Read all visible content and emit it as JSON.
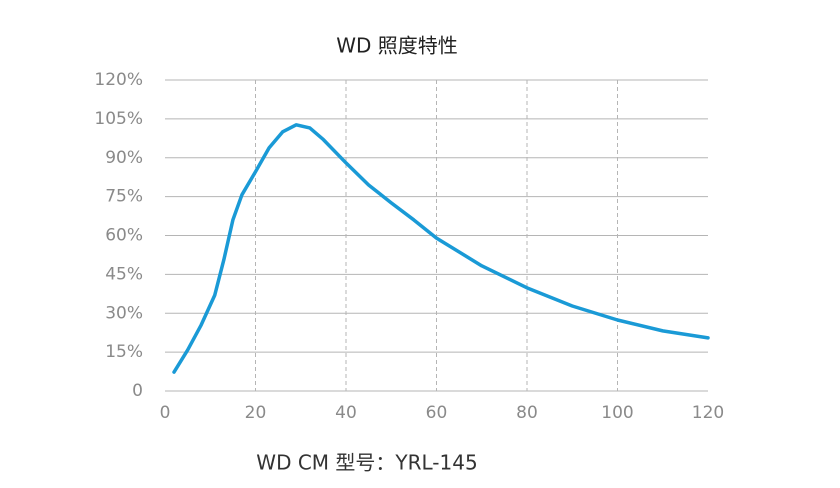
{
  "chart_data": {
    "type": "line",
    "title": "WD 照度特性",
    "caption": "WD CM 型号：YRL-145",
    "x": [
      2,
      5,
      8,
      11,
      13,
      15,
      17,
      20,
      23,
      26,
      29,
      32,
      35,
      40,
      45,
      50,
      55,
      60,
      70,
      80,
      90,
      100,
      110,
      120
    ],
    "series": [
      {
        "color": "#1a9ad6",
        "values": [
          7.3,
          15.8,
          25.5,
          37,
          50.6,
          66,
          75.7,
          84.6,
          93.8,
          100,
          102.7,
          101.5,
          97,
          88,
          79.5,
          72.6,
          66,
          59,
          48.3,
          39.8,
          32.8,
          27.4,
          23.2,
          20.5
        ]
      }
    ],
    "xlim": [
      0,
      120
    ],
    "xticks": [
      0,
      20,
      40,
      60,
      80,
      100,
      120
    ],
    "ylim": [
      0,
      120
    ],
    "yticks": [
      0,
      {
        "value": 15,
        "label": "15%"
      },
      {
        "value": 30,
        "label": "30%"
      },
      {
        "value": 45,
        "label": "45%"
      },
      {
        "value": 60,
        "label": "60%"
      },
      {
        "value": 75,
        "label": "75%"
      },
      {
        "value": 90,
        "label": "90%"
      },
      {
        "value": 105,
        "label": "105%"
      },
      {
        "value": 120,
        "label": "120%"
      }
    ],
    "grid": true
  }
}
